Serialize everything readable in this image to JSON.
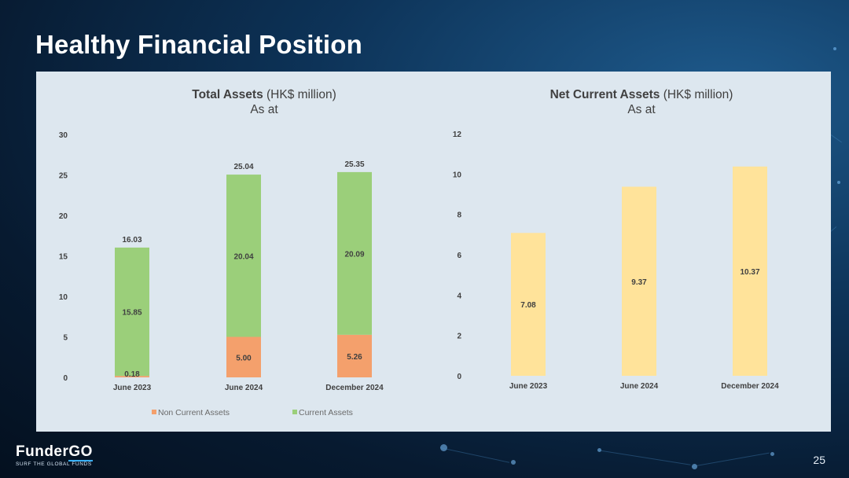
{
  "slide": {
    "title": "Healthy Financial Position",
    "page_number": "25"
  },
  "logo": {
    "name_part1": "Funder",
    "name_part2": "GO",
    "tagline": "SURF THE GLOBAL FUNDS"
  },
  "colors": {
    "current_assets": "#9bcf7a",
    "non_current_assets": "#f4a06c",
    "net_current_assets": "#ffe39a"
  },
  "chart_data": [
    {
      "type": "bar",
      "stacked": true,
      "title": "Total Assets",
      "title_suffix": "(HK$ million)",
      "subtitle": "As at",
      "categories": [
        "June 2023",
        "June 2024",
        "December 2024"
      ],
      "series": [
        {
          "name": "Non Current Assets",
          "values": [
            0.18,
            5.0,
            5.26
          ],
          "labels": [
            "0.18",
            "5.00",
            "5.26"
          ]
        },
        {
          "name": "Current Assets",
          "values": [
            15.85,
            20.04,
            20.09
          ],
          "labels": [
            "15.85",
            "20.04",
            "20.09"
          ]
        }
      ],
      "totals": [
        16.03,
        25.04,
        25.35
      ],
      "total_labels": [
        "16.03",
        "25.04",
        "25.35"
      ],
      "ylim": [
        0,
        30
      ],
      "yticks": [
        "0",
        "5",
        "10",
        "15",
        "20",
        "25",
        "30"
      ],
      "grid": false,
      "legend": "bottom"
    },
    {
      "type": "bar",
      "title": "Net Current Assets",
      "title_suffix": "(HK$ million)",
      "subtitle": "As at",
      "categories": [
        "June 2023",
        "June 2024",
        "December 2024"
      ],
      "values": [
        7.08,
        9.37,
        10.37
      ],
      "labels": [
        "7.08",
        "9.37",
        "10.37"
      ],
      "ylim": [
        0,
        12
      ],
      "yticks": [
        "0",
        "2",
        "4",
        "6",
        "8",
        "10",
        "12"
      ],
      "grid": false
    }
  ]
}
